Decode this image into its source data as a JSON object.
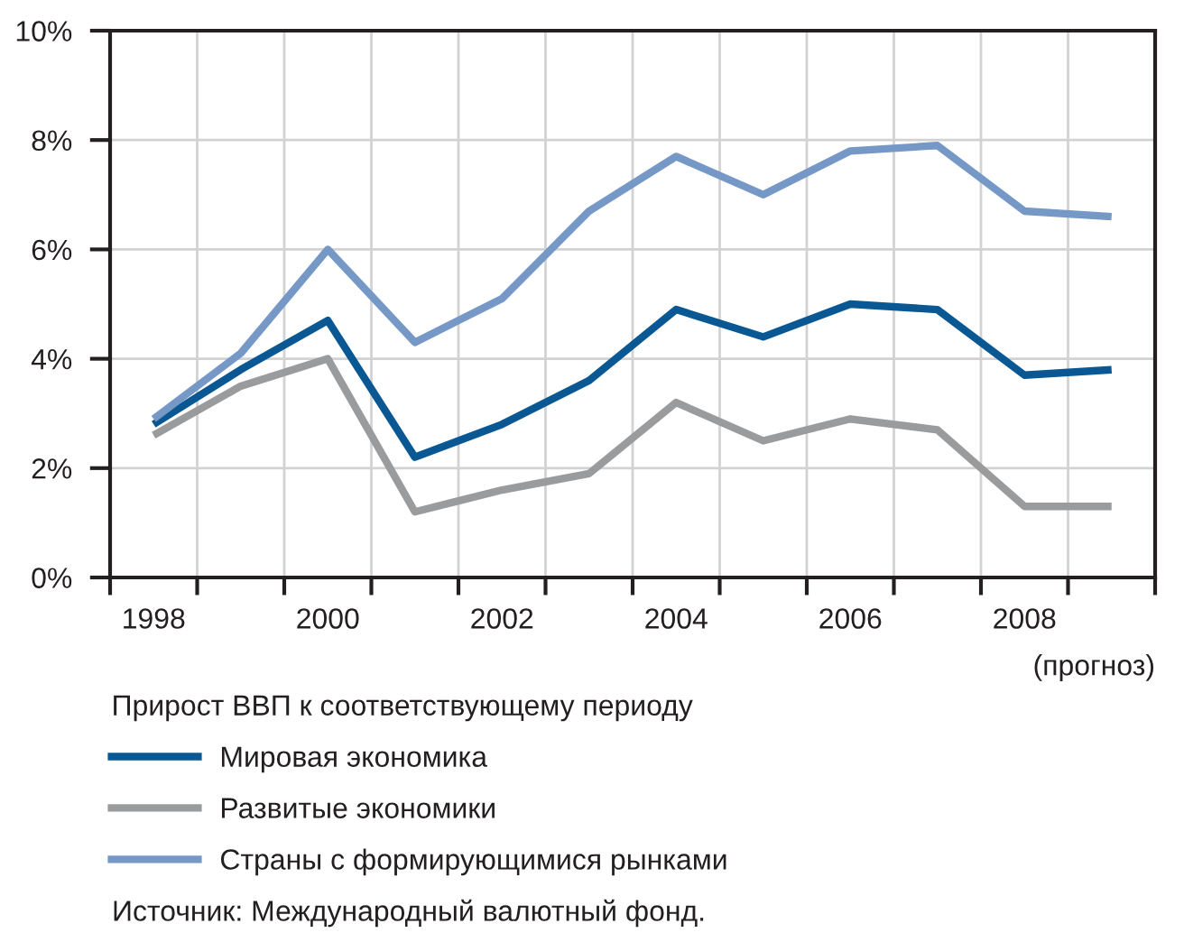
{
  "chart_data": {
    "type": "line",
    "categories": [
      "1998",
      null,
      "2000",
      null,
      "2002",
      null,
      "2004",
      null,
      "2006",
      null,
      "2008",
      null
    ],
    "series": [
      {
        "name": "Мировая экономика",
        "color": "#0a5893",
        "values": [
          2.8,
          3.8,
          4.7,
          2.2,
          2.8,
          3.6,
          4.9,
          4.4,
          5.0,
          4.9,
          3.7,
          3.8
        ]
      },
      {
        "name": "Развитые экономики",
        "color": "#9a9b9d",
        "values": [
          2.6,
          3.5,
          4.0,
          1.2,
          1.6,
          1.9,
          3.2,
          2.5,
          2.9,
          2.7,
          1.3,
          1.3
        ]
      },
      {
        "name": "Страны с формирующимися рынками",
        "color": "#7598c6",
        "values": [
          2.9,
          4.1,
          6.0,
          4.3,
          5.1,
          6.7,
          7.7,
          7.0,
          7.8,
          7.9,
          6.7,
          6.6
        ]
      }
    ],
    "ylim": [
      0,
      10
    ],
    "yticks": [
      {
        "value": 0,
        "label": "0%"
      },
      {
        "value": 2,
        "label": "2%"
      },
      {
        "value": 4,
        "label": "4%"
      },
      {
        "value": 6,
        "label": "6%"
      },
      {
        "value": 8,
        "label": "8%"
      },
      {
        "value": 10,
        "label": "10%"
      }
    ],
    "grid": true,
    "legend": "bottom",
    "legend_title": "Прирост ВВП к соответствующему периоду",
    "annotations": [
      "(прогноз)",
      "Источник: Международный валютный фонд."
    ]
  }
}
